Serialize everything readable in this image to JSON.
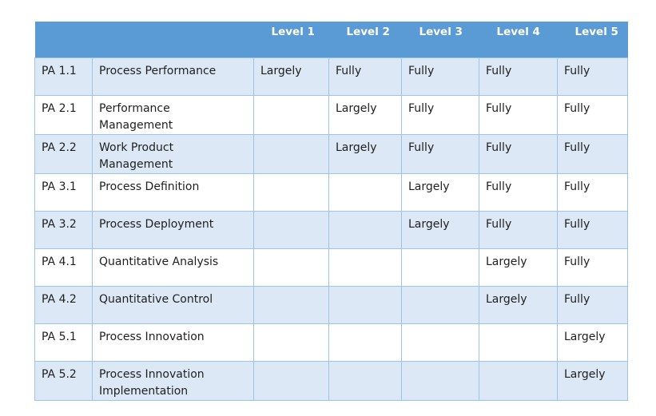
{
  "table": {
    "headers": [
      "",
      "",
      "Level 1",
      "Level 2",
      "Level 3",
      "Level 4",
      "Level 5"
    ],
    "rows": [
      [
        "PA 1.1",
        "Process Performance",
        "Largely",
        "Fully",
        "Fully",
        "Fully",
        "Fully"
      ],
      [
        "PA 2.1",
        "Performance Management",
        "",
        "Largely",
        "Fully",
        "Fully",
        "Fully"
      ],
      [
        "PA 2.2",
        "Work Product Management",
        "",
        "Largely",
        "Fully",
        "Fully",
        "Fully"
      ],
      [
        "PA 3.1",
        "Process Definition",
        "",
        "",
        "Largely",
        "Fully",
        "Fully"
      ],
      [
        "PA 3.2",
        "Process Deployment",
        "",
        "",
        "Largely",
        "Fully",
        "Fully"
      ],
      [
        "PA 4.1",
        "Quantitative Analysis",
        "",
        "",
        "",
        "Largely",
        "Fully"
      ],
      [
        "PA 4.2",
        "Quantitative Control",
        "",
        "",
        "",
        "Largely",
        "Fully"
      ],
      [
        "PA 5.1",
        "Process Innovation",
        "",
        "",
        "",
        "",
        "Largely"
      ],
      [
        "PA 5.2",
        "Process Innovation Implementation",
        "",
        "",
        "",
        "",
        "Largely"
      ]
    ]
  },
  "colors": {
    "header_background": "#5b9bd5",
    "header_text": "#ffffff",
    "band_row": "#dce8f5",
    "plain_row": "#ffffff",
    "border": "#9dc3e6"
  }
}
